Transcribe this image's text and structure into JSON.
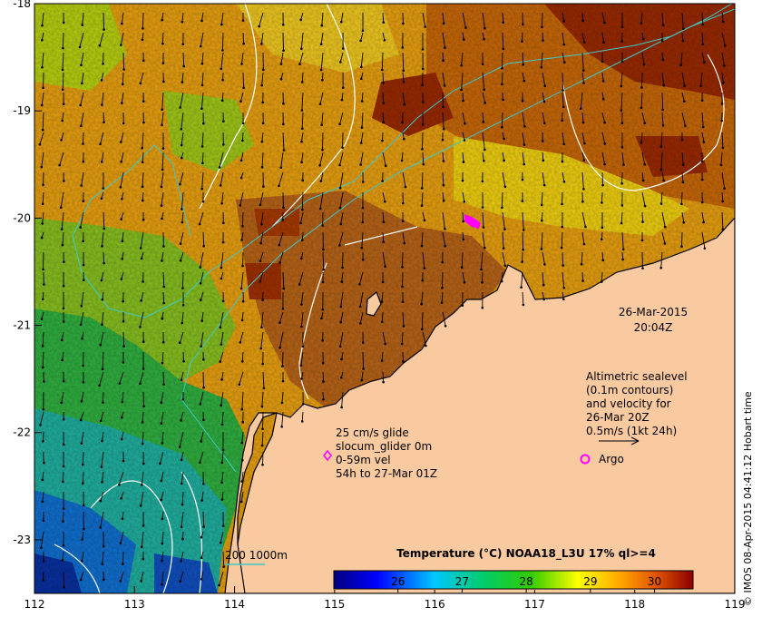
{
  "map": {
    "date": "26-Mar-2015",
    "time": "20:04Z",
    "x_ticks": [
      "112",
      "113",
      "114",
      "115",
      "116",
      "117",
      "118",
      "119"
    ],
    "y_ticks": [
      "-18",
      "-19",
      "-20",
      "-21",
      "-22",
      "-23"
    ],
    "lon_range": [
      112,
      119
    ],
    "lat_range": [
      -23.5,
      -18
    ]
  },
  "altimetry_legend": {
    "line1": "Altimetric sealevel",
    "line2": "(0.1m contours)",
    "line3": "and velocity for",
    "line4": "26-Mar 20Z",
    "line5": "0.5m/s (1kt 24h)"
  },
  "glider_legend": {
    "line1": "25 cm/s glide",
    "line2": "slocum_glider 0m",
    "line3": "0-59m vel",
    "line4": "54h to 27-Mar 01Z"
  },
  "argo_label": "Argo",
  "bathymetry_label": "200  1000m",
  "colorbar": {
    "title": "Temperature (°C) NOAA18_L3U 17% ql>=4",
    "ticks": [
      "26",
      "27",
      "28",
      "29",
      "30"
    ],
    "range": [
      25,
      30.6
    ]
  },
  "credit": "© IMOS 08-Apr-2015 04:41:12 Hobart time",
  "colors": {
    "land": "#f9c9a0",
    "glider_marker": "#ff00ff",
    "argo_marker": "#ff00ff",
    "contour": "#ffffff",
    "isobath": "#40c8c8"
  }
}
